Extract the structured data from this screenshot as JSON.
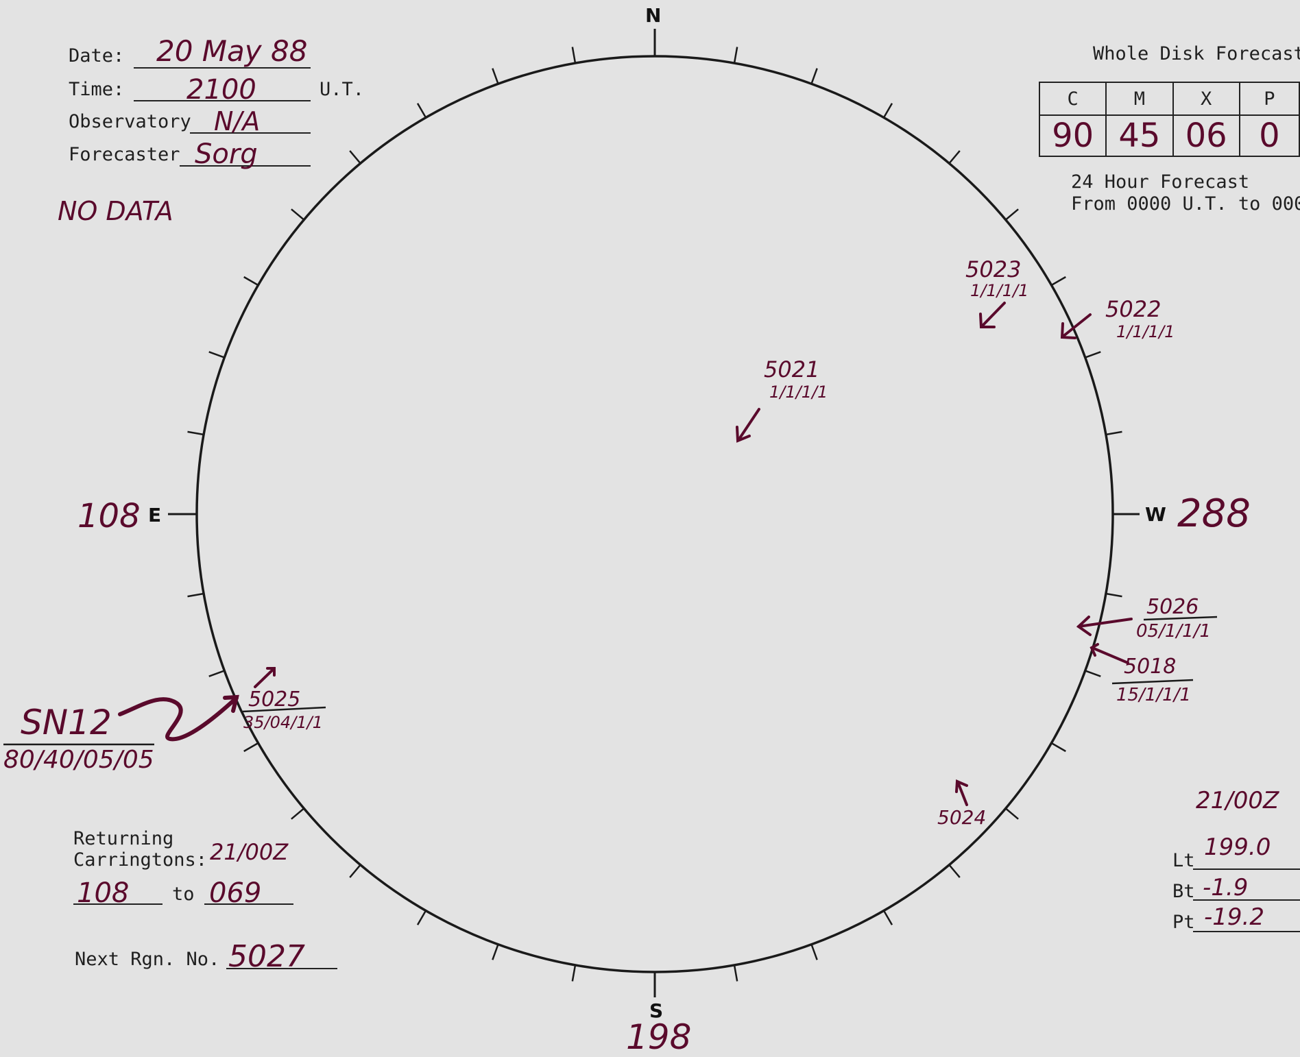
{
  "header": {
    "date_label": "Date:",
    "date_value": "20 May 88",
    "time_label": "Time:",
    "time_value": "2100",
    "time_unit": "U.T.",
    "observatory_label": "Observatory",
    "observatory_value": "N/A",
    "forecaster_label": "Forecaster",
    "forecaster_value": "Sorg",
    "note": "NO DATA"
  },
  "forecast": {
    "title": "Whole Disk Forecast",
    "columns": [
      "C",
      "M",
      "X",
      "P"
    ],
    "values": [
      "90",
      "45",
      "06",
      "0"
    ],
    "period_label": "24 Hour Forecast",
    "period_range": "From 0000 U.T. to 000"
  },
  "disk": {
    "north": "N",
    "south": "S",
    "east": "E",
    "west": "W",
    "east_longitude": "108",
    "west_longitude": "288",
    "south_longitude": "198"
  },
  "regions": [
    {
      "number": "5023",
      "code": "1/1/1/1"
    },
    {
      "number": "5022",
      "code": "1/1/1/1"
    },
    {
      "number": "5021",
      "code": "1/1/1/1"
    },
    {
      "number": "5026",
      "code": "05/1/1/1"
    },
    {
      "number": "5018",
      "code": "15/1/1/1"
    },
    {
      "number": "5025",
      "code": "35/04/1/1"
    },
    {
      "number": "5024",
      "code": ""
    }
  ],
  "sn_note": {
    "label": "SN12",
    "code": "80/40/05/05"
  },
  "returning": {
    "label_line1": "Returning",
    "label_line2": "Carringtons:",
    "date": "21/00Z",
    "from": "108",
    "to_label": "to",
    "to": "069"
  },
  "next_region": {
    "label": "Next Rgn. No.",
    "value": "5027"
  },
  "ephemeris": {
    "date": "21/00Z",
    "lt_label": "Lt",
    "lt_value": "199.0",
    "bt_label": "Bt",
    "bt_value": "-1.9",
    "pt_label": "Pt",
    "pt_value": "-19.2"
  },
  "colors": {
    "ink": "#5a0a2c",
    "paper": "#e3e3e3",
    "print": "#1f1f1f"
  }
}
